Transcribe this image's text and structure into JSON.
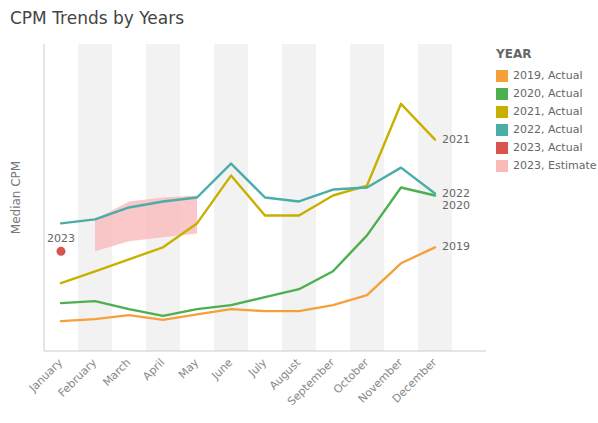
{
  "chart_data": {
    "type": "line",
    "title": "CPM Trends by Years",
    "y_label": "Median CPM",
    "legend_title": "YEAR",
    "legend": "right",
    "grid": false,
    "tick_labels": "x",
    "ylim": [
      0.8,
      8.5
    ],
    "categories": [
      "January",
      "February",
      "March",
      "April",
      "May",
      "June",
      "July",
      "August",
      "September",
      "October",
      "November",
      "December"
    ],
    "series": [
      {
        "name": "2019, Actual",
        "end_label": "2019",
        "color": "#F5A03A",
        "values": [
          1.55,
          1.6,
          1.7,
          1.58,
          1.72,
          1.85,
          1.8,
          1.8,
          1.95,
          2.2,
          3.0,
          3.4
        ]
      },
      {
        "name": "2020, Actual",
        "end_label": "2020",
        "color": "#4CAF50",
        "values": [
          2.0,
          2.05,
          1.85,
          1.68,
          1.85,
          1.95,
          2.15,
          2.35,
          2.8,
          3.7,
          4.9,
          4.7
        ]
      },
      {
        "name": "2021, Actual",
        "end_label": "2021",
        "color": "#C8B000",
        "values": [
          2.5,
          2.8,
          3.1,
          3.4,
          4.0,
          5.2,
          4.2,
          4.2,
          4.7,
          4.95,
          7.0,
          6.1
        ]
      },
      {
        "name": "2022, Actual",
        "end_label": "2022",
        "color": "#4AADA8",
        "values": [
          4.0,
          4.1,
          4.4,
          4.55,
          4.65,
          5.5,
          4.65,
          4.55,
          4.85,
          4.9,
          5.4,
          4.75
        ]
      },
      {
        "name": "2023, Actual",
        "end_label": "2023",
        "type": "scatter",
        "color": "#D9534F",
        "values": [
          3.3,
          null,
          null,
          null,
          null,
          null,
          null,
          null,
          null,
          null,
          null,
          null
        ]
      },
      {
        "name": "2023, Estimate",
        "type": "area",
        "color": "#F9BABA",
        "upper": [
          null,
          4.1,
          4.55,
          4.65,
          4.7,
          null,
          null,
          null,
          null,
          null,
          null,
          null
        ],
        "lower": [
          null,
          3.3,
          3.55,
          3.65,
          3.75,
          null,
          null,
          null,
          null,
          null,
          null,
          null
        ]
      }
    ]
  }
}
